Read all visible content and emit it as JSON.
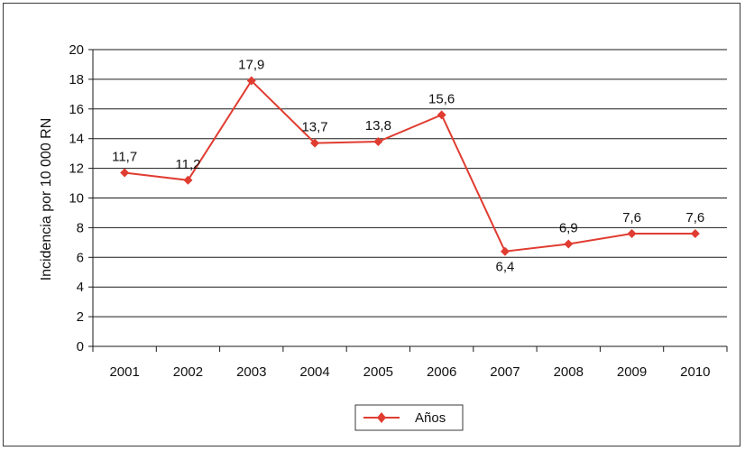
{
  "chart_data": {
    "type": "line",
    "title": "",
    "xlabel": "",
    "ylabel": "Incidencia por 10 000 RN",
    "categories": [
      "2001",
      "2002",
      "2003",
      "2004",
      "2005",
      "2006",
      "2007",
      "2008",
      "2009",
      "2010"
    ],
    "series": [
      {
        "name": "Años",
        "values": [
          11.7,
          11.2,
          17.9,
          13.7,
          13.8,
          15.6,
          6.4,
          6.9,
          7.6,
          7.6
        ],
        "labels": [
          "11,7",
          "11,2",
          "17,9",
          "13,7",
          "13,8",
          "15,6",
          "6,4",
          "6,9",
          "7,6",
          "7,6"
        ],
        "label_position": [
          "above",
          "above",
          "above",
          "above",
          "above",
          "above",
          "below",
          "above",
          "above",
          "above"
        ],
        "color": "#e03c31",
        "marker": "diamond"
      }
    ],
    "ylim": [
      0,
      20
    ],
    "yticks": [
      0,
      2,
      4,
      6,
      8,
      10,
      12,
      14,
      16,
      18,
      20
    ],
    "grid": true,
    "legend": "bottom-center",
    "line_color": "#e03c31",
    "grid_color": "#1a1a1a"
  }
}
